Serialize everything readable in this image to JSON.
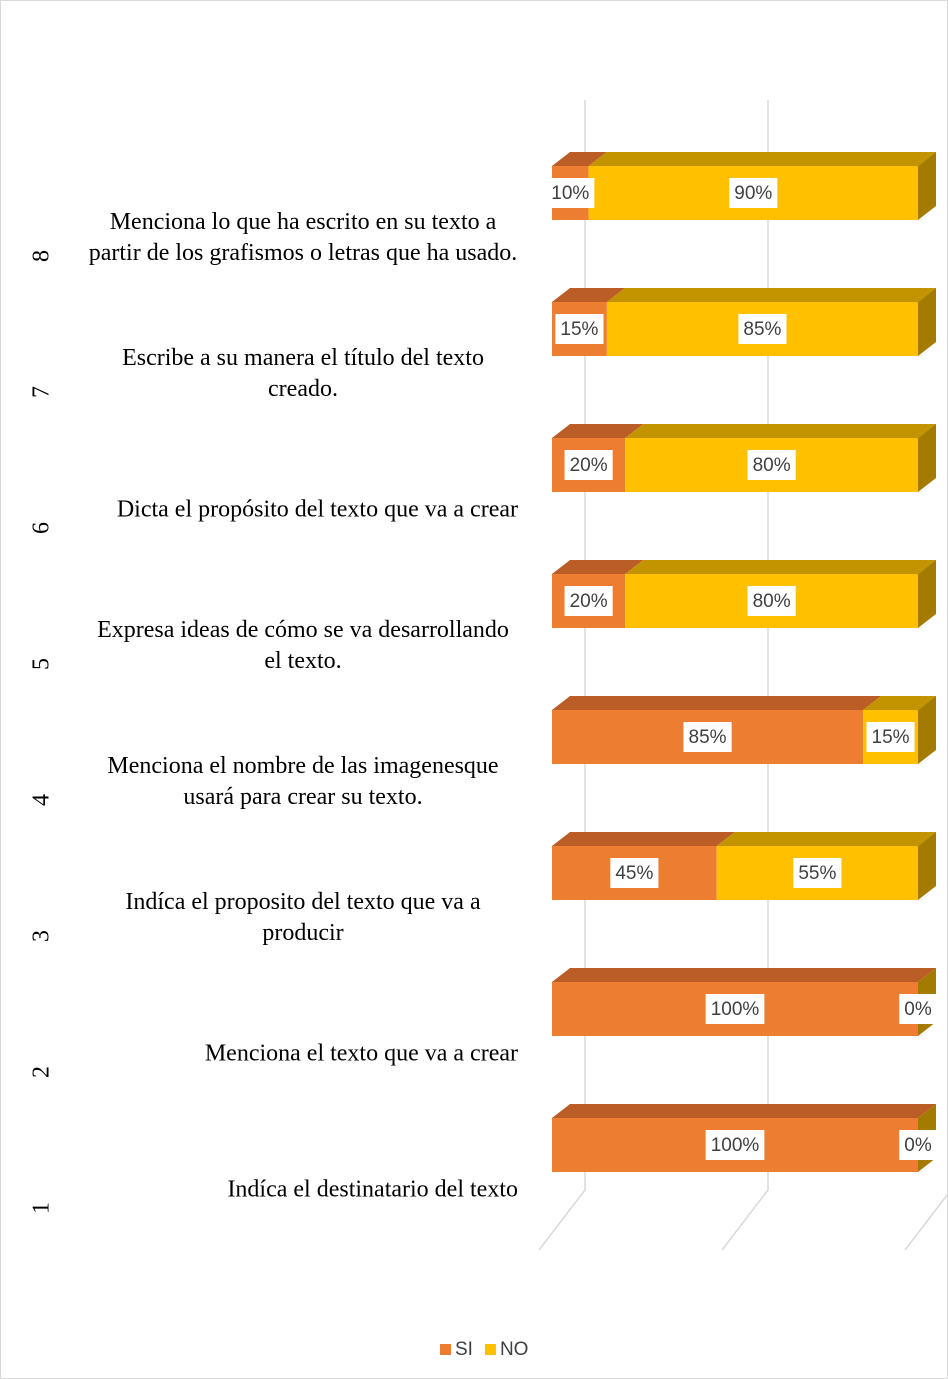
{
  "chart_data": {
    "type": "bar3d_stacked_horizontal",
    "category_numbers": [
      "1",
      "2",
      "3",
      "4",
      "5",
      "6",
      "7",
      "8"
    ],
    "categories": [
      "Indíca el destinatario del texto",
      "Menciona el texto que va a crear",
      "Indíca el proposito del texto que va a producir",
      "Menciona el nombre de las imagenesque usará para crear su texto.",
      "Expresa ideas de cómo se va desarrollando el texto.",
      "Dicta el propósito del texto que va a crear",
      "Escribe a su manera el título del texto creado.",
      "Menciona lo que ha escrito en su texto a partir de los grafismos o letras que ha usado."
    ],
    "series": [
      {
        "name": "SI",
        "color": "#ed7d31",
        "top_color": "#bb5d26",
        "side_color": "#a9531f",
        "values": [
          100,
          100,
          45,
          85,
          20,
          20,
          15,
          10
        ],
        "value_labels": [
          "100%",
          "100%",
          "45%",
          "85%",
          "20%",
          "20%",
          "15%",
          "10%"
        ]
      },
      {
        "name": "NO",
        "color": "#ffc000",
        "top_color": "#c49300",
        "side_color": "#a27b00",
        "values": [
          0,
          0,
          55,
          15,
          80,
          80,
          85,
          90
        ],
        "value_labels": [
          "0%",
          "0%",
          "55%",
          "15%",
          "80%",
          "80%",
          "85%",
          "90%"
        ]
      }
    ],
    "xlim": [
      0,
      100
    ],
    "xticks": [
      0,
      50,
      100
    ],
    "grid": true,
    "legend": "bottom"
  }
}
